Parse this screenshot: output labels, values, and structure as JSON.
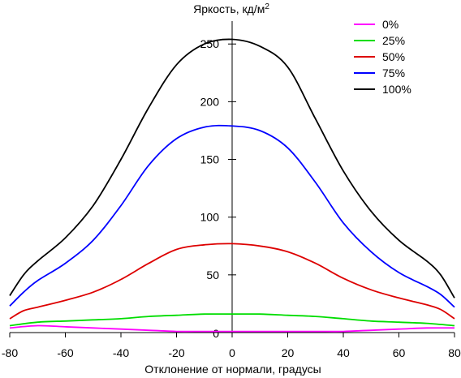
{
  "chart_data": {
    "type": "line",
    "title": "Яркость, кд/м",
    "title_superscript": "2",
    "xlabel": "Отклонение от нормали, градусы",
    "ylabel": "",
    "xlim": [
      -80,
      80
    ],
    "ylim": [
      0,
      260
    ],
    "x_ticks": [
      -80,
      -60,
      -40,
      -20,
      0,
      20,
      40,
      60,
      80
    ],
    "y_ticks": [
      50,
      100,
      150,
      200,
      250
    ],
    "y_zero_label": "0",
    "grid": false,
    "legend_position": "top-right",
    "series": [
      {
        "name": "0%",
        "color": "#ff00ff",
        "x": [
          -80,
          -70,
          -60,
          -50,
          -40,
          -30,
          -20,
          -10,
          0,
          10,
          20,
          30,
          40,
          50,
          60,
          70,
          80
        ],
        "y": [
          4,
          6,
          5,
          4,
          3,
          2,
          1,
          1,
          1,
          1,
          1,
          1,
          1,
          2,
          3,
          4,
          4
        ]
      },
      {
        "name": "25%",
        "color": "#00dd00",
        "x": [
          -80,
          -70,
          -60,
          -50,
          -40,
          -30,
          -20,
          -10,
          0,
          10,
          20,
          30,
          40,
          50,
          60,
          70,
          80
        ],
        "y": [
          6,
          9,
          10,
          11,
          12,
          14,
          15,
          16,
          16,
          16,
          15,
          14,
          12,
          10,
          9,
          8,
          6
        ]
      },
      {
        "name": "50%",
        "color": "#dd0000",
        "x": [
          -80,
          -75,
          -70,
          -60,
          -50,
          -40,
          -30,
          -20,
          -10,
          0,
          10,
          20,
          30,
          40,
          50,
          60,
          70,
          75,
          80
        ],
        "y": [
          12,
          19,
          22,
          28,
          35,
          46,
          60,
          72,
          76,
          77,
          75,
          70,
          60,
          47,
          37,
          30,
          24,
          20,
          12
        ]
      },
      {
        "name": "75%",
        "color": "#0000ff",
        "x": [
          -80,
          -75,
          -70,
          -60,
          -50,
          -40,
          -30,
          -20,
          -10,
          0,
          10,
          20,
          30,
          40,
          50,
          60,
          70,
          75,
          80
        ],
        "y": [
          23,
          35,
          45,
          60,
          80,
          110,
          145,
          168,
          178,
          179,
          175,
          160,
          130,
          95,
          70,
          52,
          40,
          33,
          22
        ]
      },
      {
        "name": "100%",
        "color": "#000000",
        "x": [
          -80,
          -75,
          -70,
          -60,
          -50,
          -40,
          -30,
          -20,
          -10,
          0,
          10,
          20,
          30,
          40,
          50,
          60,
          70,
          75,
          80
        ],
        "y": [
          32,
          50,
          62,
          82,
          110,
          150,
          195,
          232,
          250,
          254,
          248,
          230,
          185,
          140,
          105,
          80,
          62,
          50,
          30
        ]
      }
    ]
  }
}
